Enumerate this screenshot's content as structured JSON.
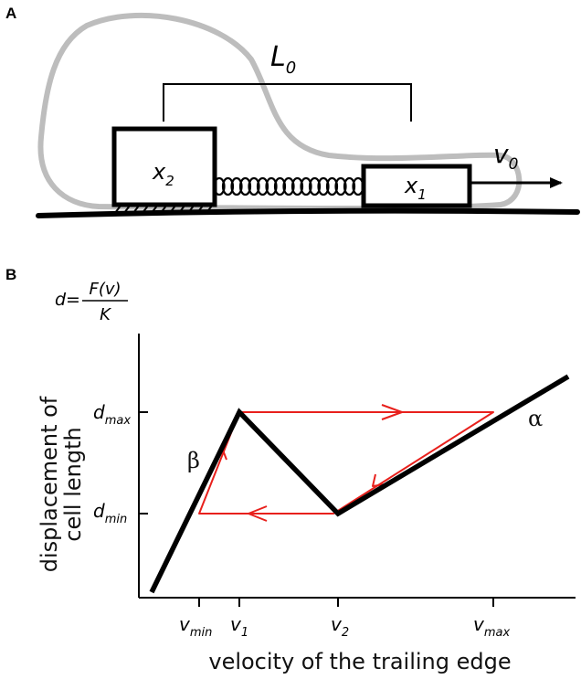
{
  "panel_a": {
    "letter": "A",
    "rest_length_label": "L",
    "rest_length_sub": "0",
    "rear_block_label": "x",
    "rear_block_sub": "2",
    "front_block_label": "x",
    "front_block_sub": "1",
    "velocity_label": "v",
    "velocity_sub": "0"
  },
  "panel_b": {
    "letter": "B",
    "formula_lhs": "d=",
    "formula_num": "F(v)",
    "formula_den": "K",
    "ylabel_line1": "displacement of",
    "ylabel_line2": "cell length",
    "xlabel": "velocity of the trailing edge",
    "branch_beta": "β",
    "branch_alpha": "α",
    "y_ticks": [
      {
        "main": "d",
        "sub": "max"
      },
      {
        "main": "d",
        "sub": "min"
      }
    ],
    "x_ticks": [
      {
        "main": "v",
        "sub": "min"
      },
      {
        "main": "v",
        "sub": "1"
      },
      {
        "main": "v",
        "sub": "2"
      },
      {
        "main": "v",
        "sub": "max"
      }
    ],
    "colors": {
      "curve": "#000000",
      "cycle": "#e8201c",
      "cell_outline": "#bdbdbd"
    }
  }
}
